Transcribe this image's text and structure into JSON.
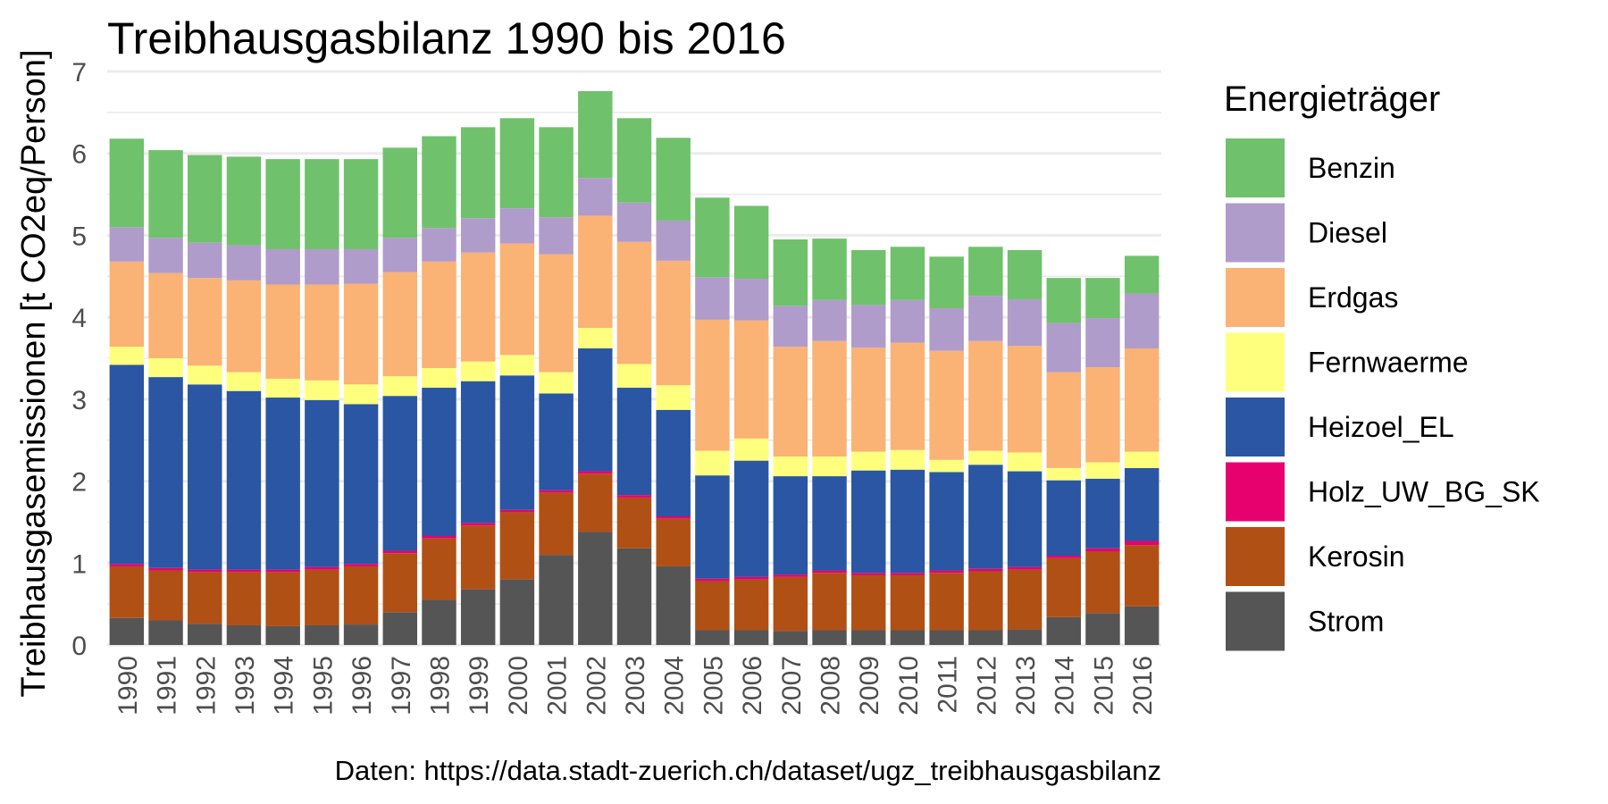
{
  "chart_data": {
    "type": "bar",
    "stacked": true,
    "title": "Treibhausgasbilanz 1990 bis 2016",
    "ylabel": "Treibhausgasemissionen [t CO2eq/Person]",
    "xlabel": "",
    "caption": "Daten: https://data.stadt-zuerich.ch/dataset/ugz_treibhausgasbilanz",
    "ylim": [
      0,
      7
    ],
    "yticks": [
      0,
      1,
      2,
      3,
      4,
      5,
      6,
      7
    ],
    "grid": true,
    "legend": {
      "title": "Energieträger",
      "position": "right"
    },
    "categories": [
      "1990",
      "1991",
      "1992",
      "1993",
      "1994",
      "1995",
      "1996",
      "1997",
      "1998",
      "1999",
      "2000",
      "2001",
      "2002",
      "2003",
      "2004",
      "2005",
      "2006",
      "2007",
      "2008",
      "2009",
      "2010",
      "2011",
      "2012",
      "2013",
      "2014",
      "2015",
      "2016"
    ],
    "series": [
      {
        "name": "Strom",
        "color": "#555555",
        "values": [
          0.33,
          0.3,
          0.26,
          0.24,
          0.23,
          0.24,
          0.25,
          0.4,
          0.55,
          0.68,
          0.8,
          1.1,
          1.38,
          1.18,
          0.96,
          0.18,
          0.18,
          0.17,
          0.18,
          0.18,
          0.18,
          0.18,
          0.18,
          0.19,
          0.34,
          0.39,
          0.47
        ]
      },
      {
        "name": "Kerosin",
        "color": "#B15014",
        "values": [
          0.63,
          0.61,
          0.63,
          0.65,
          0.66,
          0.68,
          0.71,
          0.72,
          0.75,
          0.78,
          0.82,
          0.76,
          0.71,
          0.62,
          0.58,
          0.6,
          0.62,
          0.66,
          0.7,
          0.67,
          0.67,
          0.7,
          0.72,
          0.73,
          0.72,
          0.75,
          0.75
        ]
      },
      {
        "name": "Holz_UW_BG_SK",
        "color": "#E7016F",
        "values": [
          0.03,
          0.03,
          0.03,
          0.03,
          0.03,
          0.03,
          0.03,
          0.03,
          0.03,
          0.03,
          0.03,
          0.03,
          0.03,
          0.03,
          0.03,
          0.03,
          0.03,
          0.03,
          0.03,
          0.03,
          0.03,
          0.03,
          0.03,
          0.03,
          0.03,
          0.04,
          0.05
        ]
      },
      {
        "name": "Heizoel_EL",
        "color": "#2A56A3",
        "values": [
          2.43,
          2.33,
          2.26,
          2.18,
          2.1,
          2.04,
          1.95,
          1.89,
          1.81,
          1.73,
          1.64,
          1.18,
          1.5,
          1.31,
          1.3,
          1.26,
          1.42,
          1.2,
          1.15,
          1.25,
          1.26,
          1.2,
          1.27,
          1.17,
          0.92,
          0.85,
          0.89
        ]
      },
      {
        "name": "Fernwaerme",
        "color": "#FFFF7E",
        "values": [
          0.22,
          0.23,
          0.23,
          0.23,
          0.23,
          0.24,
          0.24,
          0.24,
          0.24,
          0.24,
          0.25,
          0.26,
          0.25,
          0.29,
          0.3,
          0.3,
          0.27,
          0.24,
          0.24,
          0.23,
          0.24,
          0.15,
          0.17,
          0.23,
          0.15,
          0.2,
          0.2
        ]
      },
      {
        "name": "Erdgas",
        "color": "#FAB275",
        "values": [
          1.04,
          1.04,
          1.07,
          1.12,
          1.15,
          1.17,
          1.23,
          1.27,
          1.3,
          1.33,
          1.36,
          1.44,
          1.37,
          1.49,
          1.52,
          1.6,
          1.44,
          1.34,
          1.41,
          1.27,
          1.31,
          1.33,
          1.34,
          1.3,
          1.17,
          1.16,
          1.26
        ]
      },
      {
        "name": "Diesel",
        "color": "#AF9CCA",
        "values": [
          0.42,
          0.43,
          0.43,
          0.43,
          0.43,
          0.43,
          0.42,
          0.42,
          0.41,
          0.42,
          0.43,
          0.45,
          0.46,
          0.48,
          0.49,
          0.52,
          0.51,
          0.5,
          0.5,
          0.52,
          0.52,
          0.52,
          0.55,
          0.57,
          0.6,
          0.6,
          0.67
        ]
      },
      {
        "name": "Benzin",
        "color": "#70C16C",
        "values": [
          1.08,
          1.07,
          1.07,
          1.08,
          1.1,
          1.1,
          1.1,
          1.1,
          1.12,
          1.11,
          1.1,
          1.1,
          1.06,
          1.03,
          1.01,
          0.97,
          0.89,
          0.81,
          0.75,
          0.67,
          0.65,
          0.63,
          0.6,
          0.6,
          0.55,
          0.49,
          0.46
        ]
      }
    ],
    "legend_order": [
      "Benzin",
      "Diesel",
      "Erdgas",
      "Fernwaerme",
      "Heizoel_EL",
      "Holz_UW_BG_SK",
      "Kerosin",
      "Strom"
    ]
  }
}
